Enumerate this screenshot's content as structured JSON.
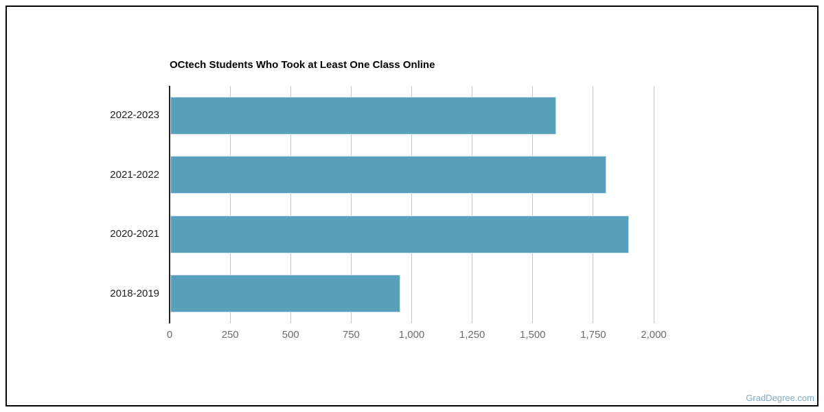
{
  "frame": {
    "border_color": "#000000",
    "background_color": "#ffffff"
  },
  "chart_data": {
    "type": "bar",
    "orientation": "horizontal",
    "title": "OCtech Students Who Took at Least One Class Online",
    "categories": [
      "2022-2023",
      "2021-2022",
      "2020-2021",
      "2018-2019"
    ],
    "values": [
      1595,
      1800,
      1895,
      950
    ],
    "xlabel": "",
    "ylabel": "",
    "xlim": [
      0,
      2000
    ],
    "x_ticks": [
      0,
      250,
      500,
      750,
      1000,
      1250,
      1500,
      1750,
      2000
    ],
    "x_tick_labels": [
      "0",
      "250",
      "500",
      "750",
      "1,000",
      "1,250",
      "1,500",
      "1,750",
      "2,000"
    ],
    "grid": "vertical-only",
    "legend": "none",
    "colors": {
      "bar": "#58a0bb",
      "gridline": "#c4c4c4",
      "axis_line": "#1f1f1f",
      "title": "#000000",
      "category_label": "#222222",
      "x_tick_label": "#6b6b6b"
    }
  },
  "watermark": {
    "text": "GradDegree.com",
    "color": "#7fa9c6"
  }
}
